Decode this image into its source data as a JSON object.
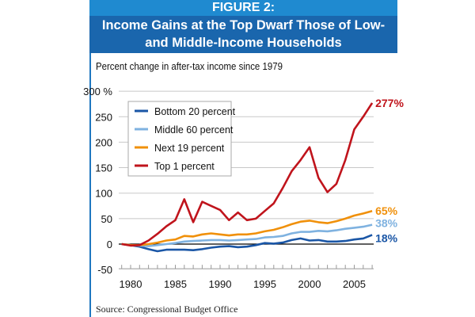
{
  "header": {
    "figure_label": "FIGURE 2:",
    "title_line1": "Income Gains at the Top Dwarf Those of Low-",
    "title_line2": "and Middle-Income Households"
  },
  "source": "Source: Congressional Budget Office",
  "chart_data": {
    "type": "line",
    "title": "Income Gains at the Top Dwarf Those of Low- and Middle-Income Households",
    "ylabel": "Percent change in after-tax income since 1979",
    "xlabel": "",
    "ylim": [
      -50,
      300
    ],
    "xlim": [
      1979,
      2007
    ],
    "yticks": [
      {
        "v": 300,
        "label": "300 %"
      },
      {
        "v": 250,
        "label": "250"
      },
      {
        "v": 200,
        "label": "200"
      },
      {
        "v": 150,
        "label": "150"
      },
      {
        "v": 100,
        "label": "100"
      },
      {
        "v": 50,
        "label": "50"
      },
      {
        "v": 0,
        "label": "0"
      },
      {
        "v": -50,
        "label": "-50"
      }
    ],
    "xticks": [
      {
        "v": 1980,
        "label": "1980"
      },
      {
        "v": 1985,
        "label": "1985"
      },
      {
        "v": 1990,
        "label": "1990"
      },
      {
        "v": 1995,
        "label": "1995"
      },
      {
        "v": 2000,
        "label": "2000"
      },
      {
        "v": 2005,
        "label": "2005"
      }
    ],
    "grid": true,
    "legend_position": "top-left",
    "x": [
      1979,
      1980,
      1981,
      1982,
      1983,
      1984,
      1985,
      1986,
      1987,
      1988,
      1989,
      1990,
      1991,
      1992,
      1993,
      1994,
      1995,
      1996,
      1997,
      1998,
      1999,
      2000,
      2001,
      2002,
      2003,
      2004,
      2005,
      2006,
      2007
    ],
    "series": [
      {
        "name": "Bottom 20 percent",
        "color": "#1a56a6",
        "end_label": "18%",
        "values": [
          0,
          -2,
          -5,
          -10,
          -14,
          -11,
          -11,
          -11,
          -12,
          -10,
          -7,
          -5,
          -4,
          -6,
          -5,
          -2,
          2,
          1,
          3,
          8,
          11,
          7,
          8,
          5,
          5,
          6,
          9,
          11,
          18
        ]
      },
      {
        "name": "Middle 60 percent",
        "color": "#7fb2e0",
        "end_label": "38%",
        "values": [
          0,
          -2,
          -3,
          -4,
          -2,
          0,
          2,
          5,
          6,
          7,
          8,
          8,
          7,
          8,
          9,
          10,
          13,
          14,
          16,
          21,
          24,
          24,
          26,
          25,
          27,
          30,
          32,
          34,
          38
        ]
      },
      {
        "name": "Next 19 percent",
        "color": "#f0900a",
        "end_label": "65%",
        "values": [
          0,
          -2,
          -2,
          0,
          3,
          7,
          9,
          16,
          15,
          19,
          21,
          19,
          17,
          19,
          19,
          21,
          25,
          28,
          33,
          39,
          44,
          46,
          43,
          41,
          45,
          50,
          56,
          60,
          65
        ]
      },
      {
        "name": "Top 1 percent",
        "color": "#c0141c",
        "end_label": "277%",
        "values": [
          0,
          -3,
          -2,
          7,
          20,
          35,
          47,
          88,
          43,
          83,
          75,
          67,
          47,
          62,
          47,
          50,
          65,
          80,
          110,
          143,
          165,
          190,
          130,
          102,
          118,
          165,
          225,
          250,
          277
        ]
      }
    ]
  }
}
